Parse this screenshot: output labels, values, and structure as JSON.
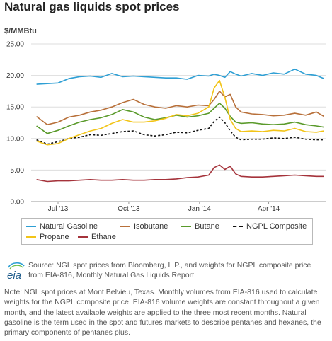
{
  "header": {
    "title": "Natural gas liquids spot prices",
    "unit": "$/MMBtu"
  },
  "legend": {
    "natural_gasoline": "Natural Gasoline",
    "isobutane": "Isobutane",
    "butane": "Butane",
    "ngpl_composite": "NGPL Composite",
    "propane": "Propane",
    "ethane": "Ethane"
  },
  "footer": {
    "logo_text": "eia",
    "source": "Source: NGL spot prices from Bloomberg, L.P., and weights for NGPL composite price from EIA-816, Monthly Natural Gas Liquids Report.",
    "note": "Note: NGL spot prices at Mont Belvieu, Texas. Monthly volumes from EIA-816 used to calculate weights for the NGPL composite price. EIA-816 volume weights are constant throughout a given month, and the latest available weights are applied to the three most recent months. Natural gasoline is the term used in the spot and futures markets to describe pentanes and hexanes, the primary components of pentanes plus."
  },
  "colors": {
    "natural_gasoline": "#2e9fd4",
    "isobutane": "#b8703a",
    "butane": "#5a9a2b",
    "ngpl_composite": "#111111",
    "propane": "#f2c418",
    "ethane": "#a5333b",
    "grid": "#dddddd"
  },
  "chart_data": {
    "type": "line",
    "title": "Natural gas liquids spot prices",
    "ylabel": "$/MMBtu",
    "ylim": [
      0,
      25
    ],
    "yticks": [
      "0.00",
      "5.00",
      "10.00",
      "15.00",
      "20.00",
      "25.00"
    ],
    "xticks": [
      "Jul '13",
      "Oct '13",
      "Jan '14",
      "Apr '14"
    ],
    "grid": true,
    "legend_position": "bottom",
    "x": [
      "2013-06-03",
      "2013-06-17",
      "2013-07-01",
      "2013-07-15",
      "2013-07-29",
      "2013-08-12",
      "2013-08-26",
      "2013-09-09",
      "2013-09-23",
      "2013-10-07",
      "2013-10-21",
      "2013-11-04",
      "2013-11-18",
      "2013-12-02",
      "2013-12-16",
      "2013-12-30",
      "2014-01-13",
      "2014-01-20",
      "2014-01-27",
      "2014-02-03",
      "2014-02-10",
      "2014-02-17",
      "2014-02-24",
      "2014-03-10",
      "2014-03-24",
      "2014-04-07",
      "2014-04-21",
      "2014-05-05",
      "2014-05-19",
      "2014-06-02",
      "2014-06-12"
    ],
    "series": [
      {
        "name": "Natural Gasoline",
        "key": "natural_gasoline",
        "values": [
          18.6,
          18.7,
          18.8,
          19.5,
          19.8,
          19.9,
          19.7,
          20.3,
          19.8,
          19.9,
          19.8,
          19.7,
          19.6,
          19.6,
          19.4,
          20.0,
          19.9,
          20.2,
          20.0,
          19.7,
          20.6,
          20.2,
          19.9,
          20.3,
          20.0,
          20.4,
          20.2,
          21.0,
          20.2,
          20.0,
          19.5
        ]
      },
      {
        "name": "Isobutane",
        "key": "isobutane",
        "values": [
          13.5,
          12.2,
          12.6,
          13.4,
          13.7,
          14.2,
          14.5,
          15.0,
          15.7,
          16.2,
          15.4,
          15.0,
          14.8,
          15.2,
          15.0,
          15.3,
          15.2,
          16.2,
          17.5,
          16.6,
          17.0,
          15.0,
          14.2,
          13.9,
          13.8,
          13.6,
          13.7,
          14.0,
          13.7,
          14.2,
          13.5
        ]
      },
      {
        "name": "Butane",
        "key": "butane",
        "values": [
          12.0,
          10.8,
          11.3,
          12.0,
          12.6,
          13.0,
          13.3,
          13.8,
          14.6,
          14.2,
          13.4,
          13.0,
          13.3,
          13.7,
          13.4,
          13.6,
          14.0,
          14.8,
          15.6,
          14.8,
          13.5,
          12.6,
          12.4,
          12.5,
          12.3,
          12.2,
          12.3,
          12.6,
          12.2,
          12.0,
          11.8
        ]
      },
      {
        "name": "NGPL Composite",
        "key": "ngpl_composite",
        "values": [
          9.8,
          9.1,
          9.5,
          10.0,
          10.2,
          10.6,
          10.5,
          10.8,
          11.1,
          11.2,
          10.6,
          10.4,
          10.6,
          11.0,
          10.9,
          11.3,
          11.6,
          12.7,
          13.4,
          12.5,
          11.2,
          10.2,
          9.8,
          9.9,
          9.9,
          10.1,
          10.0,
          10.2,
          9.9,
          9.8,
          9.8
        ]
      },
      {
        "name": "Propane",
        "key": "propane",
        "values": [
          9.6,
          9.0,
          9.2,
          10.0,
          10.6,
          11.2,
          11.6,
          12.4,
          13.0,
          12.6,
          12.6,
          12.8,
          13.2,
          13.8,
          13.6,
          14.0,
          15.0,
          18.0,
          19.2,
          16.5,
          13.0,
          11.6,
          11.1,
          11.2,
          11.1,
          11.3,
          11.2,
          11.6,
          11.1,
          11.0,
          11.2
        ]
      },
      {
        "name": "Ethane",
        "key": "ethane",
        "values": [
          3.5,
          3.2,
          3.3,
          3.3,
          3.4,
          3.5,
          3.4,
          3.4,
          3.5,
          3.4,
          3.4,
          3.5,
          3.5,
          3.6,
          3.8,
          3.9,
          4.2,
          5.4,
          5.8,
          5.1,
          5.6,
          4.4,
          4.0,
          3.9,
          3.9,
          4.0,
          4.1,
          4.2,
          4.1,
          4.0,
          4.0
        ]
      }
    ]
  }
}
